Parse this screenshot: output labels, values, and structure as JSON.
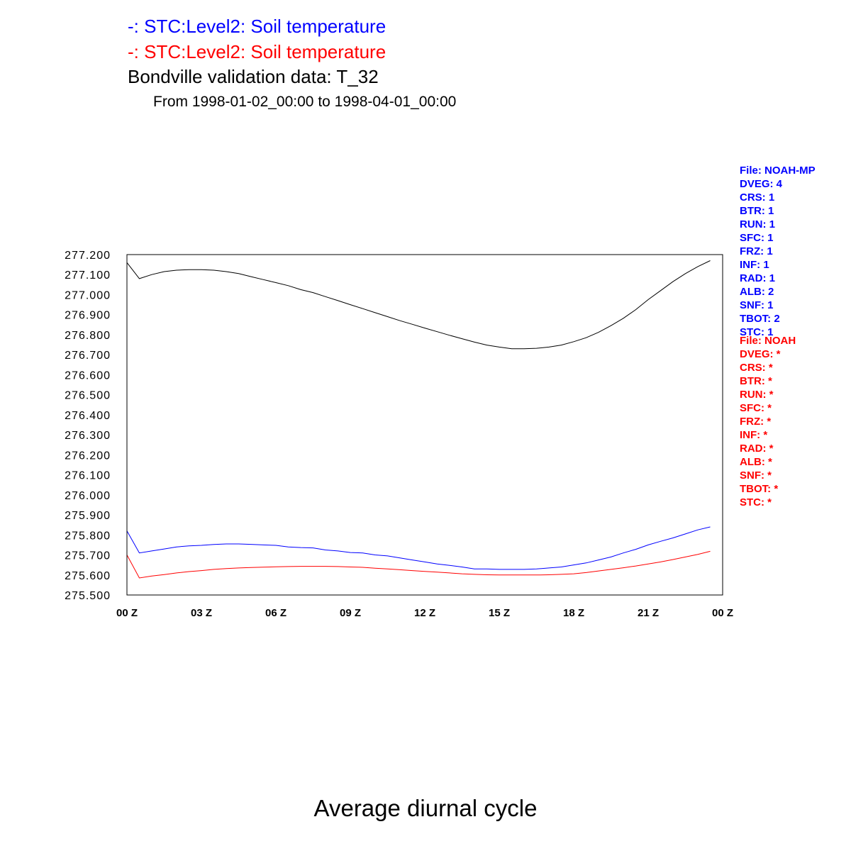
{
  "titles": {
    "line1": "-: STC:Level2: Soil temperature",
    "line2": "-: STC:Level2: Soil temperature",
    "line3": "Bondville validation data: T_32",
    "line4": "From 1998-01-02_00:00 to 1998-04-01_00:00"
  },
  "colors": {
    "blue": "#0000ff",
    "red": "#ff0000",
    "black": "#000000"
  },
  "legend_blue": [
    "File: NOAH-MP",
    "DVEG: 4",
    "CRS: 1",
    "BTR: 1",
    "RUN: 1",
    "SFC: 1",
    "FRZ: 1",
    "INF: 1",
    "RAD: 1",
    "ALB: 2",
    "SNF: 1",
    "TBOT: 2",
    "STC: 1"
  ],
  "legend_red": [
    "File: NOAH",
    "DVEG: *",
    "CRS: *",
    "BTR: *",
    "RUN: *",
    "SFC: *",
    "FRZ: *",
    "INF: *",
    "RAD: *",
    "ALB: *",
    "SNF: *",
    "TBOT: *",
    "STC: *"
  ],
  "bottom_label": "Average diurnal cycle",
  "chart_data": {
    "type": "line",
    "title": "Bondville validation data: T_32",
    "xlabel": "",
    "ylabel": "",
    "xlim": [
      0,
      24
    ],
    "ylim": [
      275.5,
      277.2
    ],
    "grid": false,
    "x_ticks": [
      0,
      3,
      6,
      9,
      12,
      15,
      18,
      21,
      24
    ],
    "x_tick_labels": [
      "00 Z",
      "03 Z",
      "06 Z",
      "09 Z",
      "12 Z",
      "15 Z",
      "18 Z",
      "21 Z",
      "00 Z"
    ],
    "y_ticks": [
      275.5,
      275.6,
      275.7,
      275.8,
      275.9,
      276.0,
      276.1,
      276.2,
      276.3,
      276.4,
      276.5,
      276.6,
      276.7,
      276.8,
      276.9,
      277.0,
      277.1,
      277.2
    ],
    "y_tick_labels": [
      "275.500",
      "275.600",
      "275.700",
      "275.800",
      "275.900",
      "276.000",
      "276.100",
      "276.200",
      "276.300",
      "276.400",
      "276.500",
      "276.600",
      "276.700",
      "276.800",
      "276.900",
      "277.000",
      "277.100",
      "277.200"
    ],
    "x": [
      0,
      0.5,
      1,
      1.5,
      2,
      2.5,
      3,
      3.5,
      4,
      4.5,
      5,
      5.5,
      6,
      6.5,
      7,
      7.5,
      8,
      8.5,
      9,
      9.5,
      10,
      10.5,
      11,
      11.5,
      12,
      12.5,
      13,
      13.5,
      14,
      14.5,
      15,
      15.5,
      16,
      16.5,
      17,
      17.5,
      18,
      18.5,
      19,
      19.5,
      20,
      20.5,
      21,
      21.5,
      22,
      22.5,
      23,
      23.5
    ],
    "series": [
      {
        "color": "#0000ff",
        "values": [
          275.82,
          275.71,
          275.72,
          275.73,
          275.74,
          275.745,
          275.748,
          275.752,
          275.755,
          275.755,
          275.753,
          275.75,
          275.748,
          275.74,
          275.737,
          275.735,
          275.725,
          275.72,
          275.712,
          275.71,
          275.7,
          275.695,
          275.685,
          275.675,
          275.665,
          275.655,
          275.648,
          275.64,
          275.63,
          275.63,
          275.628,
          275.628,
          275.628,
          275.63,
          275.635,
          275.64,
          275.65,
          275.66,
          275.675,
          275.69,
          275.71,
          275.728,
          275.75,
          275.768,
          275.785,
          275.805,
          275.825,
          275.84
        ]
      },
      {
        "color": "#ff0000",
        "values": [
          275.7,
          275.585,
          275.595,
          275.602,
          275.61,
          275.617,
          275.622,
          275.628,
          275.632,
          275.635,
          275.637,
          275.639,
          275.641,
          275.642,
          275.643,
          275.643,
          275.643,
          275.642,
          275.64,
          275.638,
          275.634,
          275.63,
          275.626,
          275.622,
          275.618,
          275.614,
          275.61,
          275.606,
          275.603,
          275.601,
          275.6,
          275.6,
          275.6,
          275.6,
          275.601,
          275.603,
          275.606,
          275.612,
          275.62,
          275.628,
          275.636,
          275.645,
          275.655,
          275.665,
          275.677,
          275.69,
          275.703,
          275.718
        ]
      },
      {
        "color": "#000000",
        "values": [
          277.16,
          277.08,
          277.1,
          277.115,
          277.122,
          277.125,
          277.125,
          277.122,
          277.115,
          277.105,
          277.09,
          277.075,
          277.06,
          277.045,
          277.025,
          277.01,
          276.99,
          276.97,
          276.95,
          276.93,
          276.91,
          276.89,
          276.87,
          276.852,
          276.833,
          276.815,
          276.797,
          276.78,
          276.763,
          276.748,
          276.738,
          276.73,
          276.73,
          276.732,
          276.738,
          276.748,
          276.765,
          276.785,
          276.812,
          276.845,
          276.882,
          276.925,
          276.975,
          277.02,
          277.065,
          277.105,
          277.14,
          277.17
        ]
      }
    ]
  }
}
